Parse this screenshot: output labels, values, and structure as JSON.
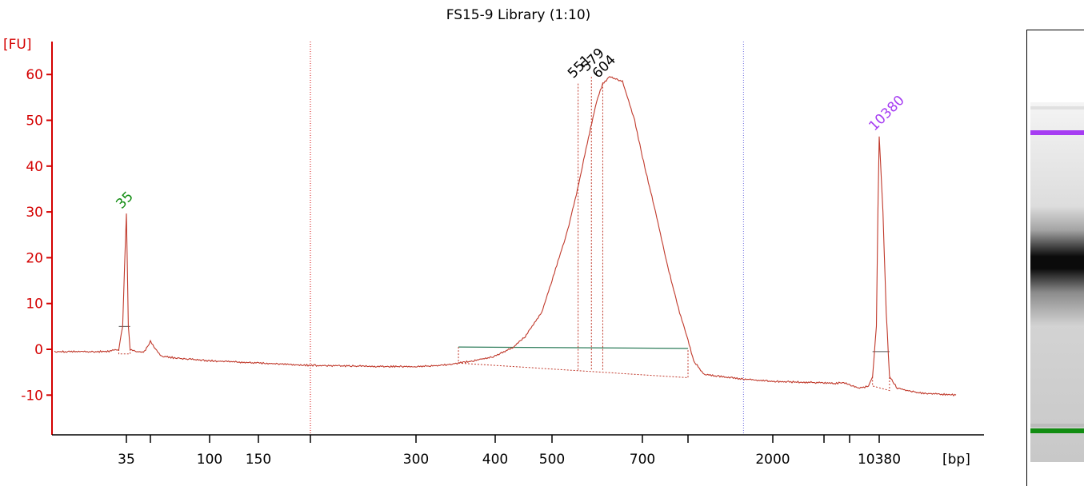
{
  "chart_data": {
    "type": "line",
    "title": "FS15-9 Library (1:10)",
    "ylabel": "[FU]",
    "xlabel": "[bp]",
    "ylim": [
      -18,
      68
    ],
    "y_ticks": [
      "60",
      "50",
      "40",
      "30",
      "20",
      "10",
      "0",
      "-10"
    ],
    "y_tick_values": [
      60,
      50,
      40,
      30,
      20,
      10,
      0,
      -10
    ],
    "x_tick_labels": [
      "35",
      "100",
      "150",
      "300",
      "400",
      "500",
      "700",
      "2000",
      "10380"
    ],
    "x_tick_values": [
      35,
      100,
      150,
      300,
      400,
      500,
      700,
      2000,
      10380
    ],
    "x_unlabeled_ticks": [
      50,
      200,
      850,
      4000,
      7000
    ],
    "x_scale": "sizing-ladder",
    "grid": false,
    "series": [
      {
        "x": [
          20,
          30,
          33,
          34,
          34.5,
          35,
          35.5,
          36,
          37,
          40,
          45,
          48,
          50,
          53,
          57,
          70,
          100,
          150,
          200,
          250,
          300,
          330,
          350,
          370,
          400,
          430,
          450,
          480,
          500,
          530,
          550,
          570,
          590,
          604,
          620,
          650,
          680,
          700,
          740,
          780,
          820,
          850,
          900,
          1000,
          1500,
          2000,
          3000,
          4000,
          5000,
          6000,
          7000,
          8000,
          9000,
          9500,
          10000,
          10200,
          10380,
          10600,
          10800,
          11000,
          11500,
          13000,
          16000
        ],
        "y": [
          -0.5,
          -0.5,
          0,
          5,
          18,
          29.5,
          18,
          5,
          0,
          -0.5,
          -0.6,
          0.5,
          1.8,
          0,
          -1.5,
          -2.0,
          -2.5,
          -3.0,
          -3.5,
          -3.7,
          -3.8,
          -3.5,
          -3.0,
          -2.5,
          -1.5,
          0.5,
          2.8,
          8.0,
          15.0,
          26.0,
          35.0,
          45.0,
          54.0,
          58.0,
          59.5,
          58.5,
          50.0,
          42.0,
          30.0,
          18.0,
          8.0,
          2.0,
          -2.5,
          -5.5,
          -6.5,
          -7.0,
          -7.2,
          -7.3,
          -7.5,
          -7.2,
          -7.8,
          -8.5,
          -8.0,
          -6.0,
          5.0,
          30.0,
          46.5,
          30.0,
          8.0,
          -6.0,
          -8.5,
          -9.5,
          -10.0
        ]
      }
    ],
    "peak_labels": [
      {
        "text": "35",
        "x": 35,
        "y": 29.5,
        "color": "#118c11"
      },
      {
        "text": "551",
        "x": 551,
        "y": 58,
        "color": "#000000"
      },
      {
        "text": "579",
        "x": 579,
        "y": 59.5,
        "color": "#000000"
      },
      {
        "text": "604",
        "x": 604,
        "y": 58,
        "color": "#000000"
      },
      {
        "text": "10380",
        "x": 10380,
        "y": 46.5,
        "color": "#a63df2"
      }
    ],
    "region": {
      "start_bp": 350,
      "end_bp": 850
    },
    "colors": {
      "axis": "#d40000",
      "trace": "#c0392b",
      "region": "#2e7d5b",
      "marker": "#a63df2",
      "ladder": "#118c11"
    }
  }
}
